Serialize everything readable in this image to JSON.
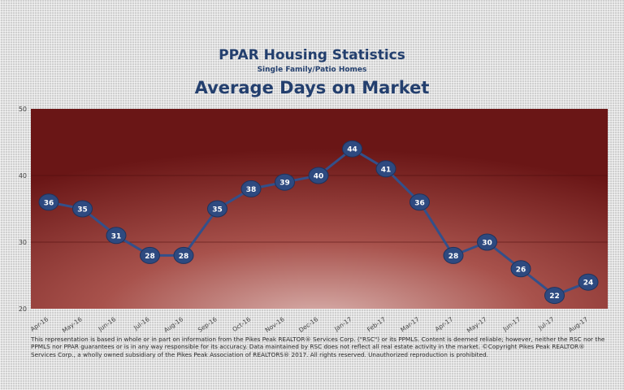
{
  "header": {
    "title": "PPAR Housing Statistics",
    "subtitle": "Single Family/Patio Homes",
    "chart_title": "Average Days on Market"
  },
  "footnote": "This representation is based in whole or in part on information from the Pikes Peak REALTOR® Services Corp. (\"RSC\") or its PPMLS. Content is deemed reliable; however, neither the RSC nor the PPMLS nor PPAR guarantees or is in any way responsible for its accuracy. Data maintained by RSC does not reflect all real estate activity in the market. ©Copyright Pikes Peak REALTOR® Services Corp., a wholly owned subsidiary of the Pikes Peak Association of REALTORS® 2017. All rights reserved. Unauthorized reproduction is prohibited.",
  "colors": {
    "title": "#233f6e",
    "line": "#33508a",
    "marker_fill": "#2e4a80",
    "marker_text": "#ffffff",
    "plot_center": "#d8b0ac",
    "plot_mid": "#a8524c",
    "plot_edge": "#6a1616"
  },
  "chart_data": {
    "type": "line",
    "categories": [
      "Apr-16",
      "May-16",
      "Jun-16",
      "Jul-16",
      "Aug-16",
      "Sep-16",
      "Oct-16",
      "Nov-16",
      "Dec-16",
      "Jan-17",
      "Feb-17",
      "Mar-17",
      "Apr-17",
      "May-17",
      "Jun-17",
      "Jul-17",
      "Aug-17"
    ],
    "series": [
      {
        "values": [
          36,
          35,
          31,
          28,
          28,
          35,
          38,
          39,
          40,
          44,
          41,
          36,
          28,
          30,
          26,
          22,
          24
        ]
      }
    ],
    "ylim": [
      20,
      50
    ],
    "yticks": [
      20,
      30,
      40,
      50
    ],
    "grid": true,
    "data_labels": true,
    "title": "Average Days on Market"
  }
}
